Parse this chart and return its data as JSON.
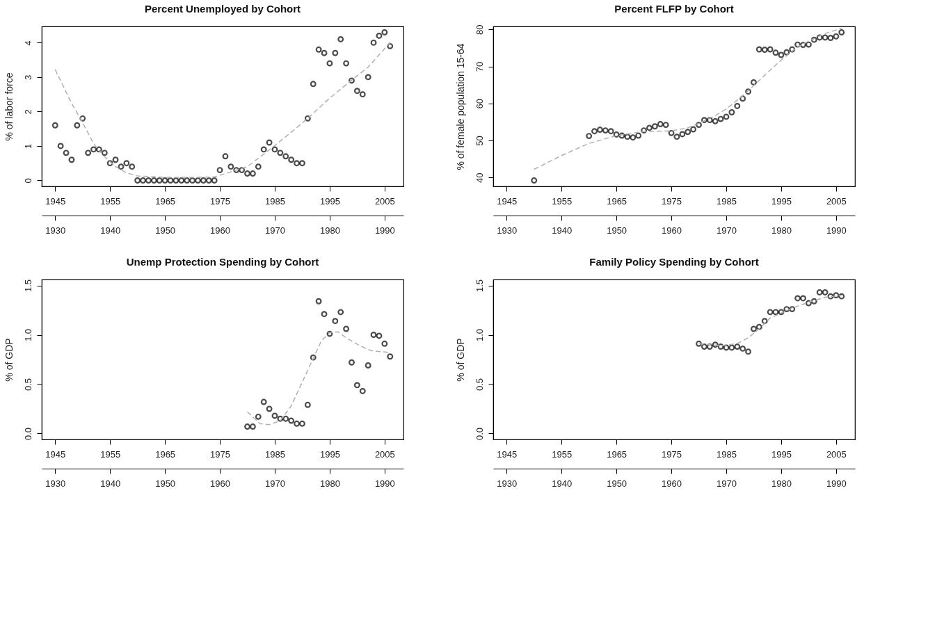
{
  "chart_data": [
    {
      "type": "scatter",
      "title": "Percent Unemployed by Cohort",
      "ylabel": "% of labor force",
      "grid": false,
      "xlim": [
        1942.56,
        2008.44
      ],
      "xticks": [
        1945,
        1955,
        1965,
        1975,
        1985,
        1995,
        2005
      ],
      "x2lim": [
        1927.56,
        1993.44
      ],
      "x2ticks": [
        1930,
        1940,
        1950,
        1960,
        1970,
        1980,
        1990
      ],
      "ylim": [
        -0.172,
        4.472
      ],
      "yticks": [
        0,
        1,
        2,
        3,
        4
      ],
      "series": [
        {
          "type": "scatter",
          "marker": "circle",
          "color": "#000000",
          "x": [
            1945,
            1946,
            1947,
            1948,
            1949,
            1950,
            1951,
            1952,
            1953,
            1954,
            1955,
            1956,
            1957,
            1958,
            1959,
            1960,
            1961,
            1962,
            1963,
            1964,
            1965,
            1966,
            1967,
            1968,
            1969,
            1970,
            1971,
            1972,
            1973,
            1974,
            1975,
            1976,
            1977,
            1978,
            1979,
            1980,
            1981,
            1982,
            1983,
            1984,
            1985,
            1986,
            1987,
            1988,
            1989,
            1990,
            1991,
            1992,
            1993,
            1994,
            1995,
            1996,
            1997,
            1998,
            1999,
            2000,
            2001,
            2002,
            2003,
            2004,
            2005,
            2006
          ],
          "values": [
            1.6,
            1.0,
            0.8,
            0.6,
            1.6,
            1.8,
            0.8,
            0.9,
            0.9,
            0.8,
            0.5,
            0.6,
            0.4,
            0.5,
            0.4,
            0,
            0,
            0,
            0,
            0,
            0,
            0,
            0,
            0,
            0,
            0,
            0,
            0,
            0,
            0,
            0.3,
            0.7,
            0.4,
            0.3,
            0.3,
            0.2,
            0.2,
            0.4,
            0.9,
            1.1,
            0.9,
            0.8,
            0.7,
            0.6,
            0.5,
            0.5,
            1.8,
            2.8,
            3.8,
            3.7,
            3.4,
            3.7,
            4.1,
            3.4,
            2.9,
            2.6,
            2.5,
            3.0,
            4.0,
            4.2,
            4.3,
            3.9
          ]
        },
        {
          "type": "line",
          "color": "#b0b0b0",
          "line_style": "dashed",
          "x": [
            1945,
            1948,
            1950,
            1952,
            1954,
            1956,
            1958,
            1960,
            1965,
            1970,
            1974,
            1980,
            1985,
            1988,
            1991,
            1995,
            1999,
            2002,
            2006
          ],
          "values": [
            3.22,
            2.24,
            1.68,
            1.07,
            0.69,
            0.4,
            0.22,
            0.13,
            0.09,
            0.09,
            0.1,
            0.4,
            1.01,
            1.4,
            1.8,
            2.39,
            2.91,
            3.29,
            4.01
          ]
        }
      ]
    },
    {
      "type": "scatter",
      "title": "Percent FLFP by Cohort",
      "ylabel": "% of female population 15-64",
      "grid": false,
      "xlim": [
        1942.56,
        2008.44
      ],
      "xticks": [
        1945,
        1955,
        1965,
        1975,
        1985,
        1995,
        2005
      ],
      "x2lim": [
        1927.56,
        1993.44
      ],
      "x2ticks": [
        1930,
        1940,
        1950,
        1960,
        1970,
        1980,
        1990
      ],
      "ylim": [
        37.6,
        80.8
      ],
      "yticks": [
        40,
        50,
        60,
        70,
        80
      ],
      "series": [
        {
          "type": "scatter",
          "marker": "circle",
          "color": "#000000",
          "x": [
            1950,
            1960,
            1961,
            1962,
            1963,
            1964,
            1965,
            1966,
            1967,
            1968,
            1969,
            1970,
            1971,
            1972,
            1973,
            1974,
            1975,
            1976,
            1977,
            1978,
            1979,
            1980,
            1981,
            1982,
            1983,
            1984,
            1985,
            1986,
            1987,
            1988,
            1989,
            1990,
            1991,
            1992,
            1993,
            1994,
            1995,
            1996,
            1997,
            1998,
            1999,
            2000,
            2001,
            2002,
            2003,
            2004,
            2005,
            2006
          ],
          "values": [
            39.2,
            51.2,
            52.5,
            52.9,
            52.7,
            52.5,
            51.6,
            51.3,
            51.0,
            50.8,
            51.3,
            52.7,
            53.4,
            53.8,
            54.4,
            54.2,
            52.0,
            51.0,
            51.7,
            52.3,
            53.0,
            54.2,
            55.5,
            55.5,
            55.2,
            55.8,
            56.4,
            57.6,
            59.3,
            61.3,
            63.2,
            65.7,
            74.6,
            74.5,
            74.6,
            73.7,
            73.1,
            73.8,
            74.6,
            75.9,
            75.8,
            75.9,
            77.2,
            77.8,
            77.8,
            77.7,
            78.1,
            79.2
          ]
        },
        {
          "type": "line",
          "color": "#b0b0b0",
          "line_style": "dashed",
          "x": [
            1950,
            1955,
            1960,
            1965,
            1970,
            1975,
            1978,
            1980,
            1983,
            1985,
            1988,
            1990,
            1993,
            1995,
            1998,
            2000,
            2003,
            2006
          ],
          "values": [
            42.2,
            45.9,
            49.2,
            51.3,
            52.4,
            52.6,
            53.4,
            54.6,
            56.7,
            58.5,
            62.1,
            64.8,
            69.0,
            71.7,
            75.3,
            76.8,
            78.9,
            80.3
          ]
        }
      ]
    },
    {
      "type": "scatter",
      "title": "Unemp Protection Spending by Cohort",
      "ylabel": "% of GDP",
      "grid": false,
      "xlim": [
        1942.56,
        2008.44
      ],
      "xticks": [
        1945,
        1955,
        1965,
        1975,
        1985,
        1995,
        2005
      ],
      "x2lim": [
        1927.56,
        1993.44
      ],
      "x2ticks": [
        1930,
        1940,
        1950,
        1960,
        1970,
        1980,
        1990
      ],
      "ylim": [
        -0.06,
        1.56
      ],
      "yticks": [
        {
          "value": 0,
          "label": "0.0"
        },
        {
          "value": 0.5,
          "label": "0.5"
        },
        {
          "value": 1,
          "label": "1.0"
        },
        {
          "value": 1.5,
          "label": "1.5"
        }
      ],
      "series": [
        {
          "type": "scatter",
          "marker": "circle",
          "color": "#000000",
          "x": [
            1980,
            1981,
            1982,
            1983,
            1984,
            1985,
            1986,
            1987,
            1988,
            1989,
            1990,
            1991,
            1992,
            1993,
            1994,
            1995,
            1996,
            1997,
            1998,
            1999,
            2000,
            2001,
            2002,
            2003,
            2004,
            2005,
            2006
          ],
          "values": [
            0.07,
            0.07,
            0.17,
            0.32,
            0.25,
            0.18,
            0.15,
            0.15,
            0.13,
            0.1,
            0.1,
            0.29,
            0.77,
            1.34,
            1.21,
            1.01,
            1.14,
            1.23,
            1.06,
            0.72,
            0.49,
            0.43,
            0.69,
            1.0,
            0.99,
            0.91,
            0.78
          ]
        },
        {
          "type": "line",
          "color": "#b0b0b0",
          "line_style": "dashed",
          "x": [
            1980,
            1982.3,
            1984,
            1986,
            1988,
            1990,
            1992,
            1993.5,
            1995,
            1996.5,
            1998,
            2000.5,
            2002.5,
            2006
          ],
          "values": [
            0.22,
            0.1,
            0.09,
            0.13,
            0.28,
            0.52,
            0.76,
            0.94,
            1.02,
            1.03,
            0.97,
            0.89,
            0.84,
            0.82
          ]
        }
      ]
    },
    {
      "type": "scatter",
      "title": "Family Policy Spending by Cohort",
      "ylabel": "% of GDP",
      "grid": false,
      "xlim": [
        1942.56,
        2008.44
      ],
      "xticks": [
        1945,
        1955,
        1965,
        1975,
        1985,
        1995,
        2005
      ],
      "x2lim": [
        1927.56,
        1993.44
      ],
      "x2ticks": [
        1930,
        1940,
        1950,
        1960,
        1970,
        1980,
        1990
      ],
      "ylim": [
        -0.06,
        1.56
      ],
      "yticks": [
        {
          "value": 0,
          "label": "0.0"
        },
        {
          "value": 0.5,
          "label": "0.5"
        },
        {
          "value": 1,
          "label": "1.0"
        },
        {
          "value": 1.5,
          "label": "1.5"
        }
      ],
      "series": [
        {
          "type": "scatter",
          "marker": "circle",
          "color": "#000000",
          "x": [
            1980,
            1981,
            1982,
            1983,
            1984,
            1985,
            1986,
            1987,
            1988,
            1989,
            1990,
            1991,
            1992,
            1993,
            1994,
            1995,
            1996,
            1997,
            1998,
            1999,
            2000,
            2001,
            2002,
            2003,
            2004,
            2005,
            2006
          ],
          "values": [
            0.91,
            0.88,
            0.88,
            0.9,
            0.88,
            0.87,
            0.87,
            0.88,
            0.86,
            0.83,
            1.06,
            1.08,
            1.14,
            1.23,
            1.23,
            1.23,
            1.26,
            1.26,
            1.37,
            1.37,
            1.32,
            1.34,
            1.43,
            1.43,
            1.39,
            1.4,
            1.39
          ]
        },
        {
          "type": "line",
          "color": "#b0b0b0",
          "line_style": "dashed",
          "x": [
            1980,
            1984,
            1987,
            1989,
            1991,
            1993,
            1995,
            1997,
            2000,
            2003,
            2006
          ],
          "values": [
            0.91,
            0.89,
            0.91,
            0.97,
            1.06,
            1.17,
            1.22,
            1.27,
            1.33,
            1.38,
            1.4
          ]
        }
      ]
    }
  ]
}
